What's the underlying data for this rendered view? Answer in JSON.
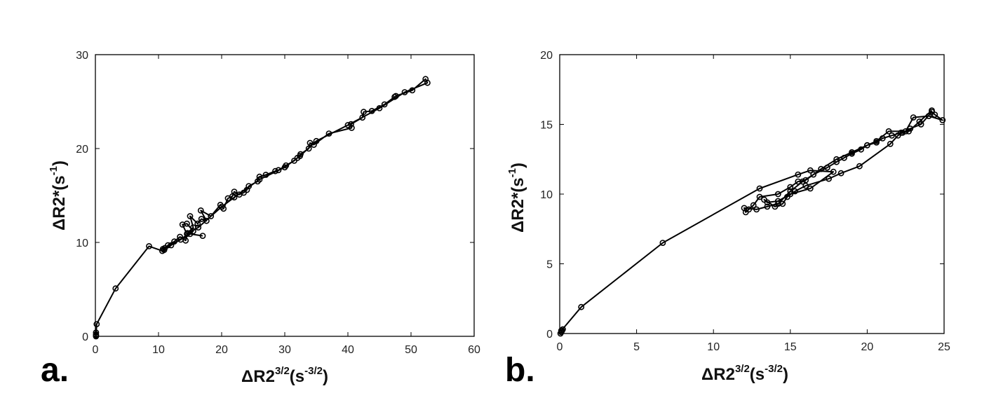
{
  "chart_data": [
    {
      "type": "line",
      "panel_label": "a.",
      "title": "",
      "xlabel": {
        "base": "ΔR2",
        "sup": "3/2",
        "unit_open": "(s",
        "unit_sup": "-3/2",
        "unit_close": ")"
      },
      "ylabel": {
        "base": "ΔR2*",
        "unit_open": "(s",
        "unit_sup": "-1",
        "unit_close": ")"
      },
      "xlim": [
        0,
        60
      ],
      "ylim": [
        0,
        30
      ],
      "xticks": [
        0,
        10,
        20,
        30,
        40,
        50,
        60
      ],
      "yticks": [
        0,
        10,
        20,
        30
      ],
      "grid": false,
      "marker": "circle",
      "series": [
        {
          "name": "",
          "points": [
            [
              0.1,
              0.0
            ],
            [
              0.1,
              0.2
            ],
            [
              0.1,
              0.4
            ],
            [
              0.1,
              0.1
            ],
            [
              0.2,
              1.3
            ],
            [
              3.2,
              5.1
            ],
            [
              8.5,
              9.6
            ],
            [
              10.6,
              9.1
            ],
            [
              10.9,
              9.2
            ],
            [
              11.0,
              9.4
            ],
            [
              11.5,
              9.7
            ],
            [
              12.5,
              10.1
            ],
            [
              13.4,
              10.6
            ],
            [
              14.3,
              10.2
            ],
            [
              14.6,
              11.0
            ],
            [
              15.5,
              11.6
            ],
            [
              15.0,
              12.8
            ],
            [
              16.2,
              12.0
            ],
            [
              16.8,
              12.5
            ],
            [
              17.6,
              12.3
            ],
            [
              16.7,
              13.4
            ],
            [
              18.3,
              12.8
            ],
            [
              19.8,
              14.0
            ],
            [
              20.3,
              13.6
            ],
            [
              21.0,
              14.7
            ],
            [
              21.7,
              14.9
            ],
            [
              22.0,
              15.4
            ],
            [
              22.8,
              15.1
            ],
            [
              23.5,
              15.3
            ],
            [
              24.0,
              15.6
            ],
            [
              24.3,
              16.0
            ],
            [
              25.7,
              16.5
            ],
            [
              26.0,
              17.0
            ],
            [
              27.0,
              17.2
            ],
            [
              28.5,
              17.6
            ],
            [
              29.0,
              17.7
            ],
            [
              30.2,
              18.2
            ],
            [
              31.5,
              18.7
            ],
            [
              32.0,
              19.0
            ],
            [
              32.5,
              19.4
            ],
            [
              33.8,
              20.0
            ],
            [
              34.0,
              20.6
            ],
            [
              34.6,
              20.4
            ],
            [
              37.0,
              21.6
            ],
            [
              40.6,
              22.2
            ],
            [
              40.5,
              22.6
            ],
            [
              42.3,
              23.3
            ],
            [
              42.5,
              23.9
            ],
            [
              43.8,
              24.0
            ],
            [
              45.8,
              24.7
            ],
            [
              47.4,
              25.5
            ],
            [
              47.6,
              25.6
            ],
            [
              50.2,
              26.2
            ],
            [
              52.3,
              27.4
            ],
            [
              52.6,
              27.0
            ],
            [
              49.0,
              26.0
            ],
            [
              45.0,
              24.3
            ],
            [
              40.0,
              22.5
            ],
            [
              35.0,
              20.8
            ],
            [
              32.4,
              19.2
            ],
            [
              30.0,
              18.0
            ],
            [
              26.0,
              16.7
            ],
            [
              22.0,
              14.8
            ],
            [
              20.0,
              13.8
            ],
            [
              16.3,
              11.6
            ],
            [
              14.5,
              10.9
            ],
            [
              13.8,
              11.9
            ],
            [
              14.5,
              12.0
            ],
            [
              15.5,
              11.2
            ],
            [
              12.0,
              9.7
            ],
            [
              10.7,
              9.3
            ],
            [
              13.5,
              10.3
            ],
            [
              15.0,
              10.9
            ],
            [
              17.0,
              10.7
            ]
          ]
        }
      ]
    },
    {
      "type": "line",
      "panel_label": "b.",
      "title": "",
      "xlabel": {
        "base": "ΔR2",
        "sup": "3/2",
        "unit_open": "(s",
        "unit_sup": "-3/2",
        "unit_close": ")"
      },
      "ylabel": {
        "base": "ΔR2*",
        "unit_open": "(s",
        "unit_sup": "-1",
        "unit_close": ")"
      },
      "xlim": [
        0,
        25
      ],
      "ylim": [
        0,
        20
      ],
      "xticks": [
        0,
        5,
        10,
        15,
        20,
        25
      ],
      "yticks": [
        0,
        5,
        10,
        15,
        20
      ],
      "grid": false,
      "marker": "circle",
      "series": [
        {
          "name": "",
          "points": [
            [
              0.05,
              0.0
            ],
            [
              0.1,
              0.1
            ],
            [
              0.15,
              0.2
            ],
            [
              0.2,
              0.3
            ],
            [
              0.1,
              0.2
            ],
            [
              1.4,
              1.9
            ],
            [
              6.7,
              6.5
            ],
            [
              13.0,
              10.4
            ],
            [
              15.5,
              11.4
            ],
            [
              16.3,
              11.7
            ],
            [
              17.8,
              11.6
            ],
            [
              16.3,
              10.4
            ],
            [
              15.0,
              10.0
            ],
            [
              14.2,
              9.5
            ],
            [
              13.5,
              9.4
            ],
            [
              13.3,
              9.6
            ],
            [
              14.0,
              9.1
            ],
            [
              14.5,
              9.3
            ],
            [
              14.8,
              9.8
            ],
            [
              15.3,
              10.2
            ],
            [
              16.0,
              10.6
            ],
            [
              17.5,
              11.1
            ],
            [
              18.3,
              11.5
            ],
            [
              19.5,
              12.0
            ],
            [
              21.5,
              13.6
            ],
            [
              22.0,
              14.2
            ],
            [
              22.3,
              14.4
            ],
            [
              22.8,
              14.7
            ],
            [
              23.5,
              15.0
            ],
            [
              24.2,
              15.9
            ],
            [
              24.4,
              15.7
            ],
            [
              24.9,
              15.3
            ],
            [
              24.0,
              15.6
            ],
            [
              23.0,
              15.5
            ],
            [
              22.5,
              14.5
            ],
            [
              21.4,
              14.5
            ],
            [
              20.6,
              13.8
            ],
            [
              20.0,
              13.5
            ],
            [
              19.0,
              13.0
            ],
            [
              18.0,
              12.5
            ],
            [
              17.0,
              11.8
            ],
            [
              16.0,
              11.0
            ],
            [
              15.5,
              10.9
            ],
            [
              15.0,
              10.5
            ],
            [
              14.2,
              10.0
            ],
            [
              13.0,
              9.8
            ],
            [
              12.6,
              9.2
            ],
            [
              12.3,
              8.9
            ],
            [
              12.1,
              8.7
            ],
            [
              12.0,
              9.0
            ],
            [
              12.8,
              8.9
            ],
            [
              13.5,
              9.1
            ],
            [
              14.2,
              9.3
            ],
            [
              15.0,
              10.2
            ],
            [
              15.8,
              10.9
            ],
            [
              16.5,
              11.4
            ],
            [
              17.4,
              11.9
            ],
            [
              18.0,
              12.3
            ],
            [
              18.5,
              12.6
            ],
            [
              19.0,
              12.9
            ],
            [
              19.6,
              13.2
            ],
            [
              20.0,
              13.5
            ],
            [
              20.6,
              13.7
            ],
            [
              21.0,
              14.0
            ],
            [
              21.6,
              14.2
            ],
            [
              22.2,
              14.4
            ],
            [
              22.7,
              14.5
            ],
            [
              23.4,
              15.2
            ],
            [
              24.2,
              16.0
            ]
          ]
        }
      ]
    }
  ]
}
